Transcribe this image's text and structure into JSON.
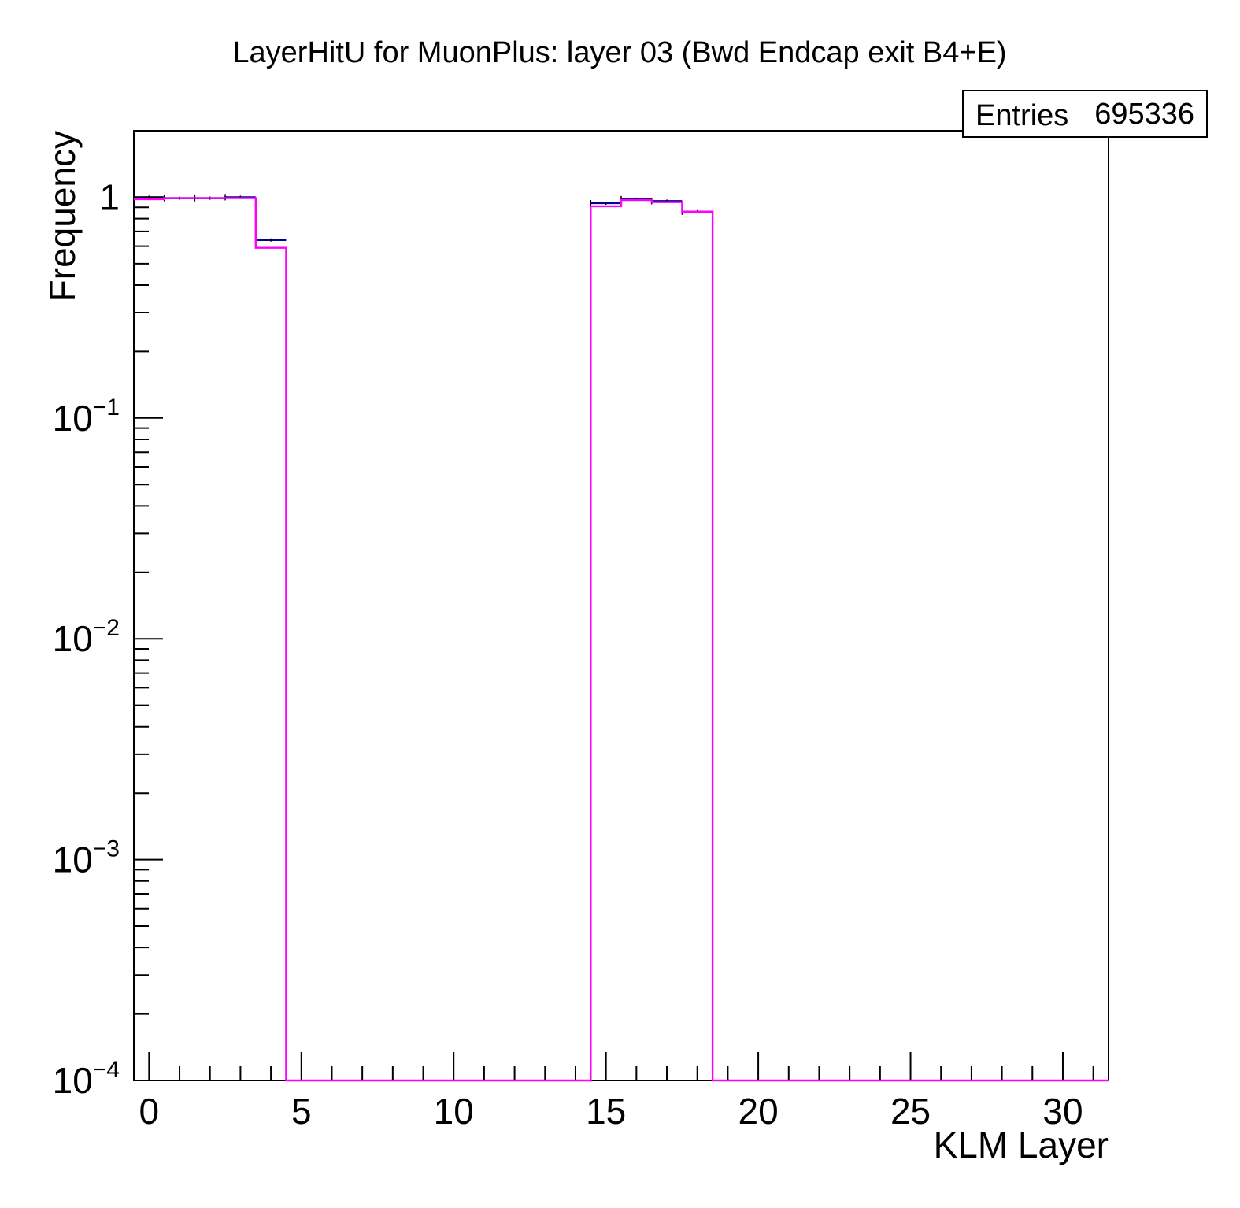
{
  "chart_data": {
    "type": "bar",
    "title": "LayerHitU for MuonPlus: layer 03 (Bwd Endcap exit B4+E)",
    "xlabel": "KLM Layer",
    "ylabel": "Frequency",
    "xlim": [
      -0.5,
      31.5
    ],
    "ylim": [
      0.0001,
      2.0
    ],
    "yscale": "log",
    "x_ticks": [
      "0",
      "5",
      "10",
      "15",
      "20",
      "25",
      "30"
    ],
    "y_ticks": [
      {
        "base": "1",
        "exp": ""
      },
      {
        "base": "10",
        "exp": "−1"
      },
      {
        "base": "10",
        "exp": "−2"
      },
      {
        "base": "10",
        "exp": "−3"
      },
      {
        "base": "10",
        "exp": "−4"
      }
    ],
    "stats": {
      "label": "Entries",
      "value": "695336"
    },
    "bin_edges": [
      -0.5,
      0.5,
      1.5,
      2.5,
      3.5,
      4.5,
      5.5,
      6.5,
      7.5,
      8.5,
      9.5,
      10.5,
      11.5,
      12.5,
      13.5,
      14.5,
      15.5,
      16.5,
      17.5,
      18.5,
      19.5,
      20.5,
      21.5,
      22.5,
      23.5,
      24.5,
      25.5,
      26.5,
      27.5,
      28.5,
      29.5,
      30.5,
      31.5
    ],
    "series": [
      {
        "role": "data",
        "color": "#000099",
        "values": [
          1.0,
          0.99,
          0.99,
          1.0,
          0.64,
          0,
          0,
          0,
          0,
          0,
          0,
          0,
          0,
          0,
          0,
          0.94,
          0.98,
          0.96,
          0.86,
          0,
          0,
          0,
          0,
          0,
          0,
          0,
          0,
          0,
          0,
          0,
          0,
          0
        ]
      },
      {
        "role": "reference",
        "color": "#ff00ff",
        "values": [
          0.98,
          0.99,
          0.99,
          0.99,
          0.59,
          0,
          0,
          0,
          0,
          0,
          0,
          0,
          0,
          0,
          0,
          0.91,
          0.97,
          0.95,
          0.86,
          0,
          0,
          0,
          0,
          0,
          0,
          0,
          0,
          0,
          0,
          0,
          0,
          0
        ]
      }
    ]
  }
}
